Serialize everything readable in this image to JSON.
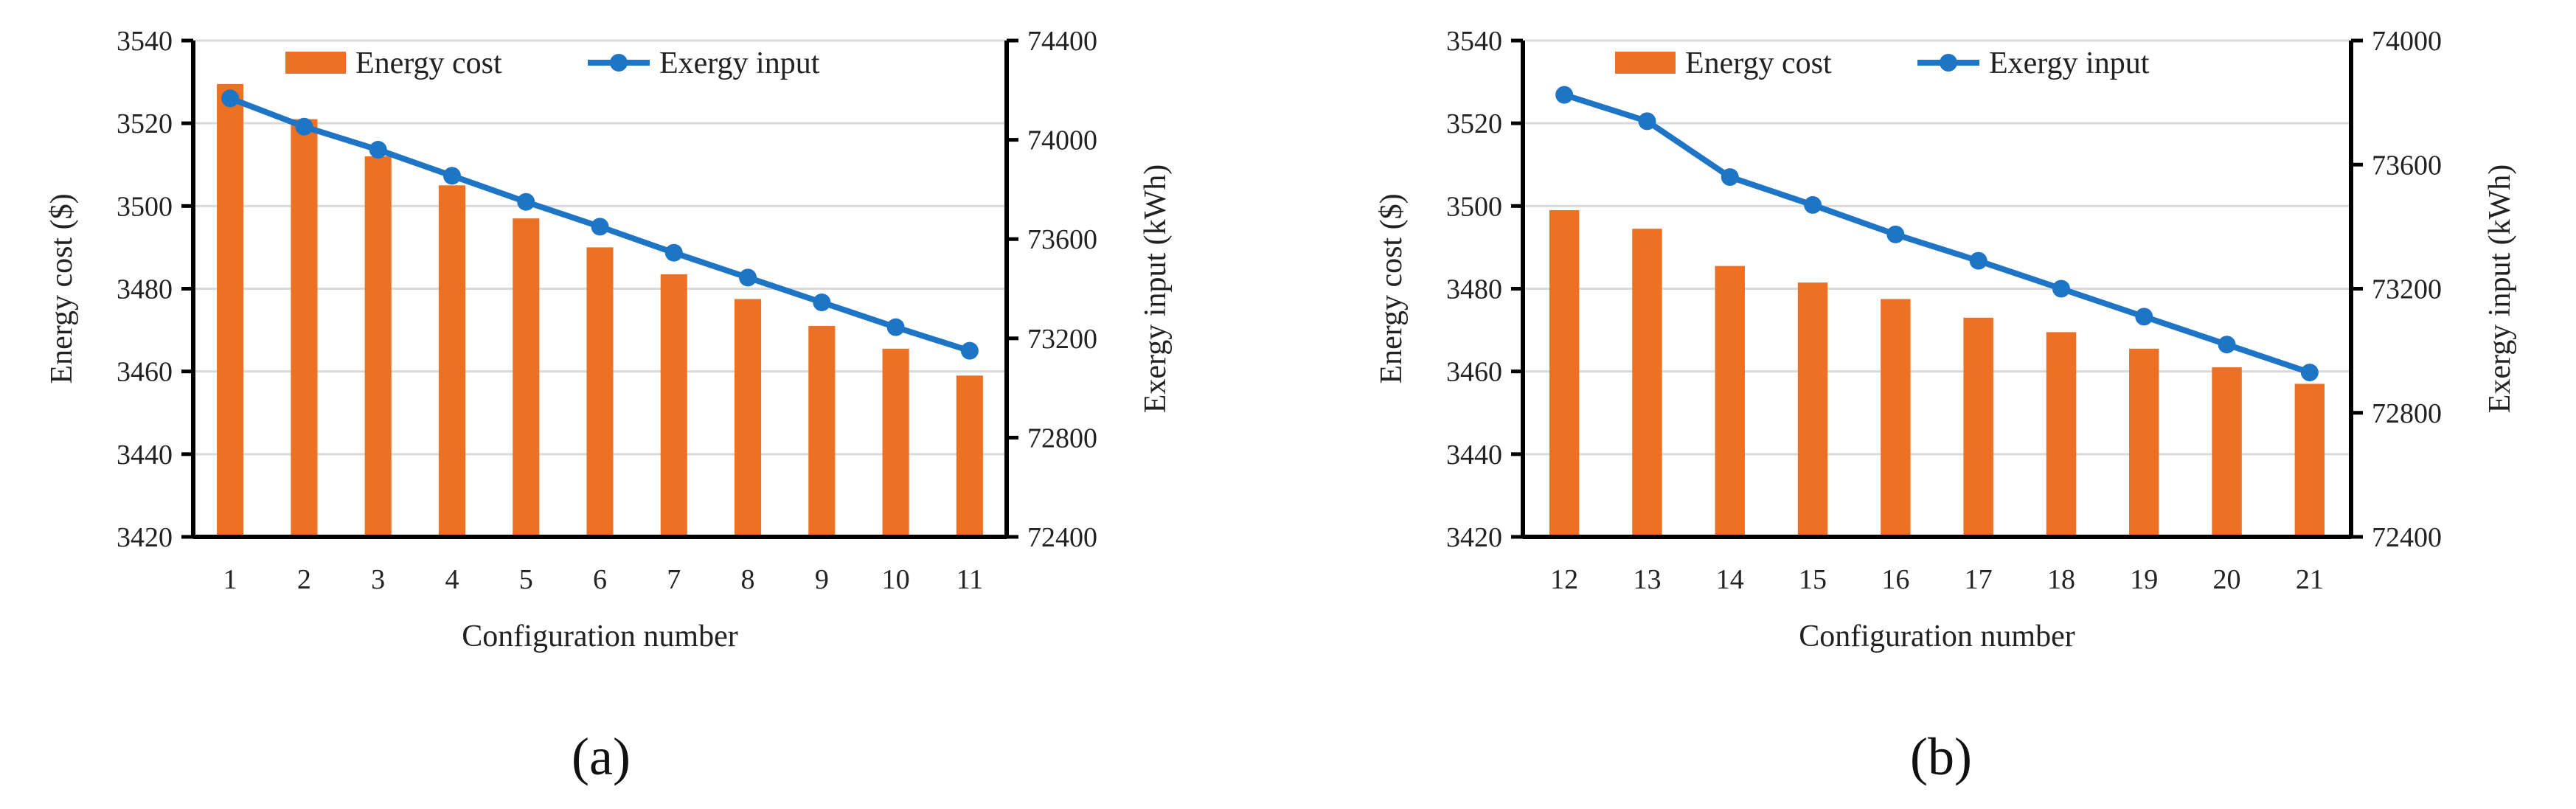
{
  "colors": {
    "bar": "#ED7124",
    "line": "#1F75C5",
    "grid": "#d9d9d9",
    "axis": "#000000"
  },
  "chart_data": [
    {
      "type": "bar",
      "panel_label": "(a)",
      "xlabel": "Configuration number",
      "ylabel": "Energy cost ($)",
      "y2label": "Exergy input (kWh)",
      "categories": [
        "1",
        "2",
        "3",
        "4",
        "5",
        "6",
        "7",
        "8",
        "9",
        "10",
        "11"
      ],
      "ylim": [
        3420,
        3540
      ],
      "yticks": [
        "3420",
        "3440",
        "3460",
        "3480",
        "3500",
        "3520",
        "3540"
      ],
      "y2lim": [
        72400,
        74400
      ],
      "y2ticks": [
        "72400",
        "72800",
        "73200",
        "73600",
        "74000",
        "74400"
      ],
      "grid": true,
      "legend": [
        "Energy cost",
        "Exergy input"
      ],
      "series": [
        {
          "name": "Energy cost",
          "type": "bar",
          "axis": "left",
          "values": [
            3529.5,
            3521,
            3512,
            3505,
            3497,
            3490,
            3483.5,
            3477.5,
            3471,
            3465.5,
            3459
          ]
        },
        {
          "name": "Exergy input",
          "type": "line",
          "axis": "right",
          "values": [
            74167,
            74053,
            73960,
            73855,
            73750,
            73650,
            73545,
            73445,
            73345,
            73245,
            73150
          ]
        }
      ]
    },
    {
      "type": "bar",
      "panel_label": "(b)",
      "xlabel": "Configuration number",
      "ylabel": "Energy cost ($)",
      "y2label": "Exergy input (kWh)",
      "categories": [
        "12",
        "13",
        "14",
        "15",
        "16",
        "17",
        "18",
        "19",
        "20",
        "21"
      ],
      "ylim": [
        3420,
        3540
      ],
      "yticks": [
        "3420",
        "3440",
        "3460",
        "3480",
        "3500",
        "3520",
        "3540"
      ],
      "y2lim": [
        72400,
        74000
      ],
      "y2ticks": [
        "72400",
        "72800",
        "73200",
        "73600",
        "74000"
      ],
      "grid": true,
      "legend": [
        "Energy cost",
        "Exergy input"
      ],
      "series": [
        {
          "name": "Energy cost",
          "type": "bar",
          "axis": "left",
          "values": [
            3499,
            3494.5,
            3485.5,
            3481.5,
            3477.5,
            3473,
            3469.5,
            3465.5,
            3461,
            3457
          ]
        },
        {
          "name": "Exergy input",
          "type": "line",
          "axis": "right",
          "values": [
            73825,
            73740,
            73560,
            73470,
            73375,
            73290,
            73200,
            73110,
            73020,
            72930
          ]
        }
      ]
    }
  ]
}
